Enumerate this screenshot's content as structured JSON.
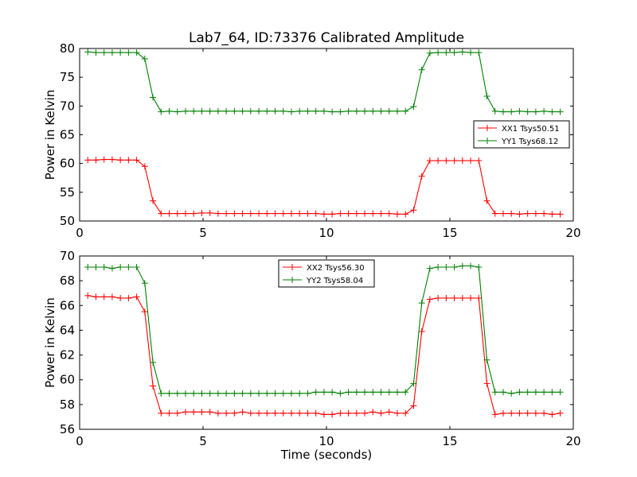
{
  "figure": {
    "title": "Lab7_64, ID:73376 Calibrated Amplitude"
  },
  "chart_data": [
    {
      "type": "line",
      "title": "Lab7_64, ID:73376 Calibrated Amplitude",
      "xlabel": "",
      "ylabel": "Power in Kelvin",
      "xlim": [
        0,
        20
      ],
      "ylim": [
        50,
        80
      ],
      "xticks": [
        0,
        5,
        10,
        15,
        20
      ],
      "yticks": [
        50,
        55,
        60,
        65,
        70,
        75,
        80
      ],
      "grid": false,
      "legend": "center-right",
      "x": [
        0.33,
        0.66,
        0.99,
        1.32,
        1.65,
        1.98,
        2.31,
        2.64,
        2.97,
        3.3,
        3.63,
        3.96,
        4.29,
        4.62,
        4.95,
        5.28,
        5.61,
        5.94,
        6.27,
        6.6,
        6.93,
        7.26,
        7.59,
        7.92,
        8.25,
        8.58,
        8.91,
        9.24,
        9.57,
        9.9,
        10.23,
        10.56,
        10.89,
        11.22,
        11.55,
        11.88,
        12.21,
        12.54,
        12.87,
        13.2,
        13.53,
        13.86,
        14.19,
        14.52,
        14.85,
        15.18,
        15.51,
        15.84,
        16.17,
        16.5,
        16.83,
        17.16,
        17.49,
        17.82,
        18.15,
        18.48,
        18.81,
        19.14,
        19.47
      ],
      "series": [
        {
          "name": "XX1 Tsys50.51",
          "color": "#ff0000",
          "values": [
            60.6,
            60.6,
            60.7,
            60.7,
            60.6,
            60.6,
            60.6,
            59.5,
            53.5,
            51.3,
            51.3,
            51.3,
            51.3,
            51.3,
            51.4,
            51.4,
            51.3,
            51.3,
            51.3,
            51.3,
            51.3,
            51.3,
            51.3,
            51.3,
            51.3,
            51.3,
            51.3,
            51.3,
            51.3,
            51.2,
            51.2,
            51.3,
            51.3,
            51.3,
            51.3,
            51.3,
            51.3,
            51.3,
            51.2,
            51.2,
            51.9,
            57.8,
            60.5,
            60.5,
            60.5,
            60.5,
            60.5,
            60.5,
            60.5,
            53.5,
            51.3,
            51.3,
            51.3,
            51.2,
            51.3,
            51.3,
            51.3,
            51.2,
            51.2
          ]
        },
        {
          "name": "YY1 Tsys68.12",
          "color": "#008000",
          "values": [
            79.4,
            79.3,
            79.3,
            79.3,
            79.3,
            79.3,
            79.3,
            78.2,
            71.5,
            69.0,
            69.1,
            69.0,
            69.1,
            69.1,
            69.1,
            69.1,
            69.1,
            69.1,
            69.1,
            69.1,
            69.1,
            69.1,
            69.1,
            69.1,
            69.1,
            69.0,
            69.1,
            69.1,
            69.1,
            69.1,
            69.0,
            69.0,
            69.1,
            69.1,
            69.1,
            69.1,
            69.1,
            69.1,
            69.1,
            69.1,
            69.9,
            76.3,
            79.2,
            79.3,
            79.3,
            79.3,
            79.4,
            79.3,
            79.3,
            71.7,
            69.1,
            69.0,
            69.0,
            69.1,
            69.0,
            69.0,
            69.1,
            69.0,
            69.0
          ]
        }
      ]
    },
    {
      "type": "line",
      "title": "",
      "xlabel": "Time (seconds)",
      "ylabel": "Power in Kelvin",
      "xlim": [
        0,
        20
      ],
      "ylim": [
        56,
        70
      ],
      "xticks": [
        0,
        5,
        10,
        15,
        20
      ],
      "yticks": [
        56,
        58,
        60,
        62,
        64,
        66,
        68,
        70
      ],
      "grid": false,
      "legend": "upper-center",
      "x": [
        0.33,
        0.66,
        0.99,
        1.32,
        1.65,
        1.98,
        2.31,
        2.64,
        2.97,
        3.3,
        3.63,
        3.96,
        4.29,
        4.62,
        4.95,
        5.28,
        5.61,
        5.94,
        6.27,
        6.6,
        6.93,
        7.26,
        7.59,
        7.92,
        8.25,
        8.58,
        8.91,
        9.24,
        9.57,
        9.9,
        10.23,
        10.56,
        10.89,
        11.22,
        11.55,
        11.88,
        12.21,
        12.54,
        12.87,
        13.2,
        13.53,
        13.86,
        14.19,
        14.52,
        14.85,
        15.18,
        15.51,
        15.84,
        16.17,
        16.5,
        16.83,
        17.16,
        17.49,
        17.82,
        18.15,
        18.48,
        18.81,
        19.14,
        19.47
      ],
      "series": [
        {
          "name": "XX2 Tsys56.30",
          "color": "#ff0000",
          "values": [
            66.8,
            66.7,
            66.7,
            66.7,
            66.6,
            66.6,
            66.7,
            65.5,
            59.5,
            57.3,
            57.3,
            57.3,
            57.4,
            57.4,
            57.4,
            57.4,
            57.3,
            57.3,
            57.3,
            57.4,
            57.3,
            57.3,
            57.3,
            57.3,
            57.3,
            57.3,
            57.3,
            57.3,
            57.3,
            57.2,
            57.2,
            57.3,
            57.3,
            57.3,
            57.3,
            57.4,
            57.3,
            57.4,
            57.3,
            57.3,
            57.9,
            63.9,
            66.5,
            66.6,
            66.6,
            66.6,
            66.6,
            66.6,
            66.6,
            59.7,
            57.2,
            57.3,
            57.3,
            57.3,
            57.3,
            57.3,
            57.3,
            57.2,
            57.3
          ]
        },
        {
          "name": "YY2 Tsys58.04",
          "color": "#008000",
          "values": [
            69.1,
            69.1,
            69.1,
            69.0,
            69.1,
            69.1,
            69.1,
            67.8,
            61.4,
            58.9,
            58.9,
            58.9,
            58.9,
            58.9,
            58.9,
            58.9,
            58.9,
            58.9,
            58.9,
            58.9,
            58.9,
            58.9,
            58.9,
            58.9,
            58.9,
            58.9,
            58.9,
            58.9,
            59.0,
            59.0,
            59.0,
            58.9,
            59.0,
            59.0,
            59.0,
            59.0,
            59.0,
            59.0,
            59.0,
            59.0,
            59.7,
            66.2,
            69.0,
            69.1,
            69.1,
            69.1,
            69.2,
            69.2,
            69.1,
            61.6,
            59.0,
            59.0,
            58.9,
            59.0,
            59.0,
            59.0,
            59.0,
            59.0,
            59.0
          ]
        }
      ]
    }
  ]
}
